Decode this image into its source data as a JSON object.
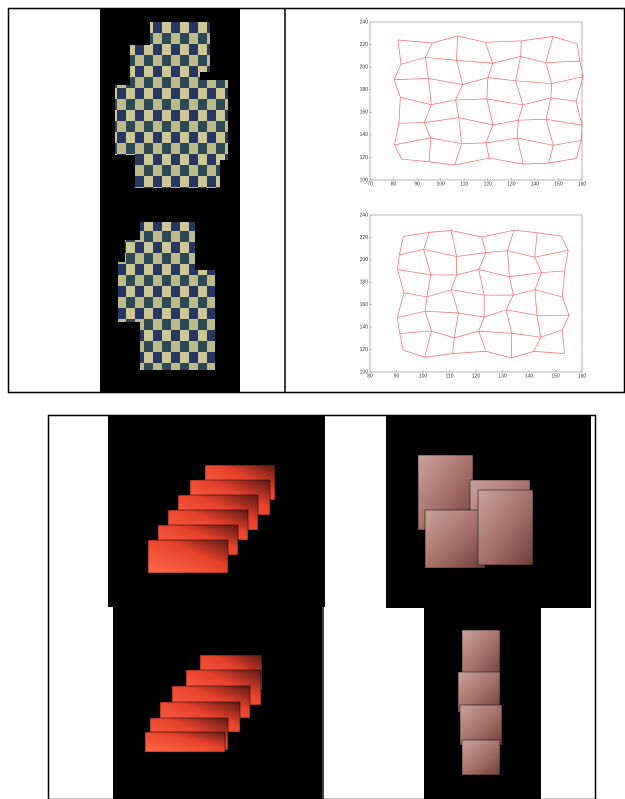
{
  "figure": {
    "plots": [
      {
        "xlim": [
          70,
          160
        ],
        "ylim": [
          100,
          240
        ],
        "xticks": [
          70,
          80,
          90,
          100,
          110,
          120,
          130,
          140,
          150,
          160
        ],
        "yticks": [
          100,
          120,
          140,
          160,
          180,
          200,
          220,
          240
        ]
      },
      {
        "xlim": [
          80,
          160
        ],
        "ylim": [
          100,
          240
        ],
        "xticks": [
          80,
          90,
          100,
          110,
          120,
          130,
          140,
          150,
          160
        ],
        "yticks": [
          100,
          120,
          140,
          160,
          180,
          200,
          220,
          240
        ]
      }
    ]
  }
}
